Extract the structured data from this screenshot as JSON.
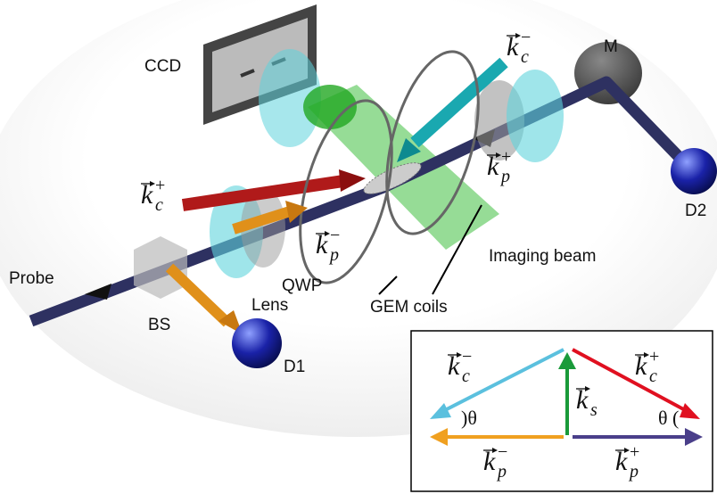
{
  "labels": {
    "ccd": "CCD",
    "m": "M",
    "d2": "D2",
    "imaging_beam": "Imaging beam",
    "probe": "Probe",
    "qwp": "QWP",
    "lens": "Lens",
    "gem_coils": "GEM coils",
    "bs": "BS",
    "d1": "D1"
  },
  "vectors": [
    {
      "base": "k",
      "sub": "c",
      "sup": "−"
    },
    {
      "base": "k",
      "sub": "c",
      "sup": "+"
    },
    {
      "base": "k",
      "sub": "p",
      "sup": "+"
    },
    {
      "base": "k",
      "sub": "p",
      "sup": "−"
    }
  ],
  "inset": {
    "vectors": [
      {
        "base": "k",
        "sub": "c",
        "sup": "−"
      },
      {
        "base": "k",
        "sub": "c",
        "sup": "+"
      },
      {
        "base": "k",
        "sub": "s"
      },
      {
        "base": "k",
        "sub": "p",
        "sup": "−"
      },
      {
        "base": "k",
        "sub": "p",
        "sup": "+"
      }
    ],
    "angles": [
      "θ",
      "θ"
    ]
  }
}
